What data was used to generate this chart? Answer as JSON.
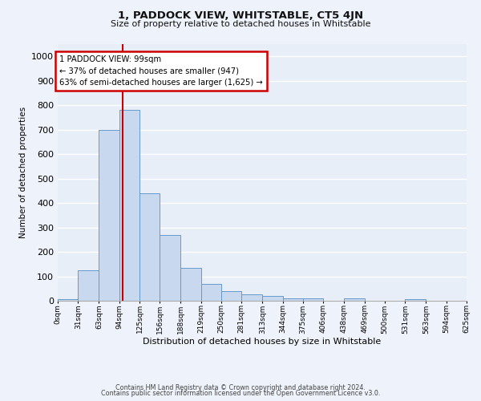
{
  "title": "1, PADDOCK VIEW, WHITSTABLE, CT5 4JN",
  "subtitle": "Size of property relative to detached houses in Whitstable",
  "xlabel": "Distribution of detached houses by size in Whitstable",
  "ylabel": "Number of detached properties",
  "bar_color": "#c8d9ef",
  "bar_edge_color": "#6699cc",
  "background_color": "#e8eef8",
  "fig_background_color": "#eef2fa",
  "grid_color": "#ffffff",
  "vline_x": 99,
  "vline_color": "#cc0000",
  "bin_edges": [
    0,
    31,
    63,
    94,
    125,
    156,
    188,
    219,
    250,
    281,
    313,
    344,
    375,
    406,
    438,
    469,
    500,
    531,
    563,
    594,
    625
  ],
  "bar_heights": [
    5,
    125,
    700,
    780,
    440,
    270,
    135,
    70,
    40,
    25,
    20,
    10,
    10,
    0,
    10,
    0,
    0,
    5,
    0,
    0
  ],
  "tick_labels": [
    "0sqm",
    "31sqm",
    "63sqm",
    "94sqm",
    "125sqm",
    "156sqm",
    "188sqm",
    "219sqm",
    "250sqm",
    "281sqm",
    "313sqm",
    "344sqm",
    "375sqm",
    "406sqm",
    "438sqm",
    "469sqm",
    "500sqm",
    "531sqm",
    "563sqm",
    "594sqm",
    "625sqm"
  ],
  "yticks": [
    0,
    100,
    200,
    300,
    400,
    500,
    600,
    700,
    800,
    900,
    1000
  ],
  "ylim": [
    0,
    1050
  ],
  "annotation_box_text": "1 PADDOCK VIEW: 99sqm\n← 37% of detached houses are smaller (947)\n63% of semi-detached houses are larger (1,625) →",
  "annotation_box_color": "#ffffff",
  "annotation_box_edge_color": "#cc0000",
  "footer_line1": "Contains HM Land Registry data © Crown copyright and database right 2024.",
  "footer_line2": "Contains public sector information licensed under the Open Government Licence v3.0."
}
